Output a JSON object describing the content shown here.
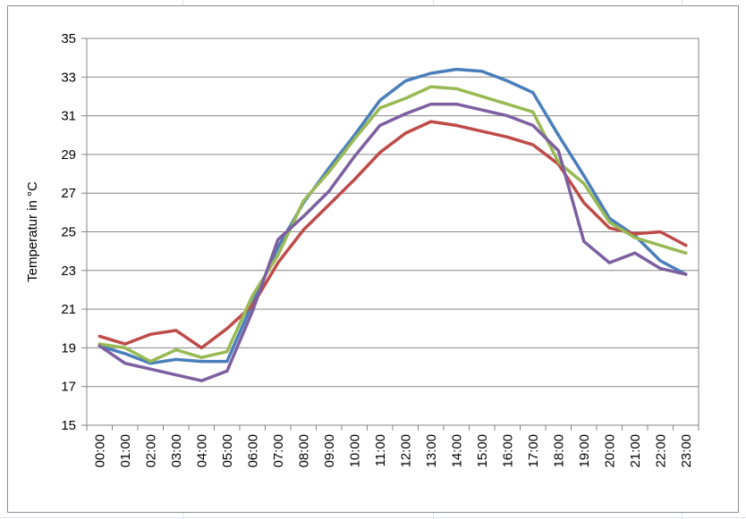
{
  "chart_data": {
    "type": "line",
    "title": "",
    "xlabel": "",
    "ylabel": "Temperatur in °C",
    "ylim": [
      15,
      35
    ],
    "yticks": [
      15,
      17,
      19,
      21,
      23,
      25,
      27,
      29,
      31,
      33,
      35
    ],
    "grid": true,
    "legend": "none",
    "categories": [
      "00:00",
      "01:00",
      "02:00",
      "03:00",
      "04:00",
      "05:00",
      "06:00",
      "07:00",
      "08:00",
      "09:00",
      "10:00",
      "11:00",
      "12:00",
      "13:00",
      "14:00",
      "15:00",
      "16:00",
      "17:00",
      "18:00",
      "19:00",
      "20:00",
      "21:00",
      "22:00",
      "23:00"
    ],
    "series": [
      {
        "color": "#4a7ebb",
        "values": [
          19.1,
          18.7,
          18.2,
          18.4,
          18.3,
          18.3,
          21.3,
          24.2,
          26.5,
          28.3,
          30.0,
          31.8,
          32.8,
          33.2,
          33.4,
          33.3,
          32.8,
          32.2,
          30.0,
          27.9,
          25.7,
          24.8,
          23.5,
          22.8
        ]
      },
      {
        "color": "#be4b48",
        "values": [
          19.6,
          19.2,
          19.7,
          19.9,
          19.0,
          20.0,
          21.2,
          23.4,
          25.1,
          26.4,
          27.7,
          29.1,
          30.1,
          30.7,
          30.5,
          30.2,
          29.9,
          29.5,
          28.5,
          26.5,
          25.2,
          24.9,
          25.0,
          24.3
        ]
      },
      {
        "color": "#98b954",
        "values": [
          19.2,
          19.0,
          18.3,
          18.9,
          18.5,
          18.8,
          21.7,
          23.8,
          26.6,
          28.1,
          29.8,
          31.4,
          31.9,
          32.5,
          32.4,
          32.0,
          31.6,
          31.2,
          28.6,
          27.5,
          25.5,
          24.7,
          24.3,
          23.9
        ]
      },
      {
        "color": "#7d5fa0",
        "values": [
          19.1,
          18.2,
          17.9,
          17.6,
          17.3,
          17.8,
          20.9,
          24.6,
          25.8,
          27.1,
          28.9,
          30.5,
          31.1,
          31.6,
          31.6,
          31.3,
          31.0,
          30.5,
          29.2,
          24.5,
          23.4,
          23.9,
          23.1,
          22.8
        ]
      }
    ]
  }
}
